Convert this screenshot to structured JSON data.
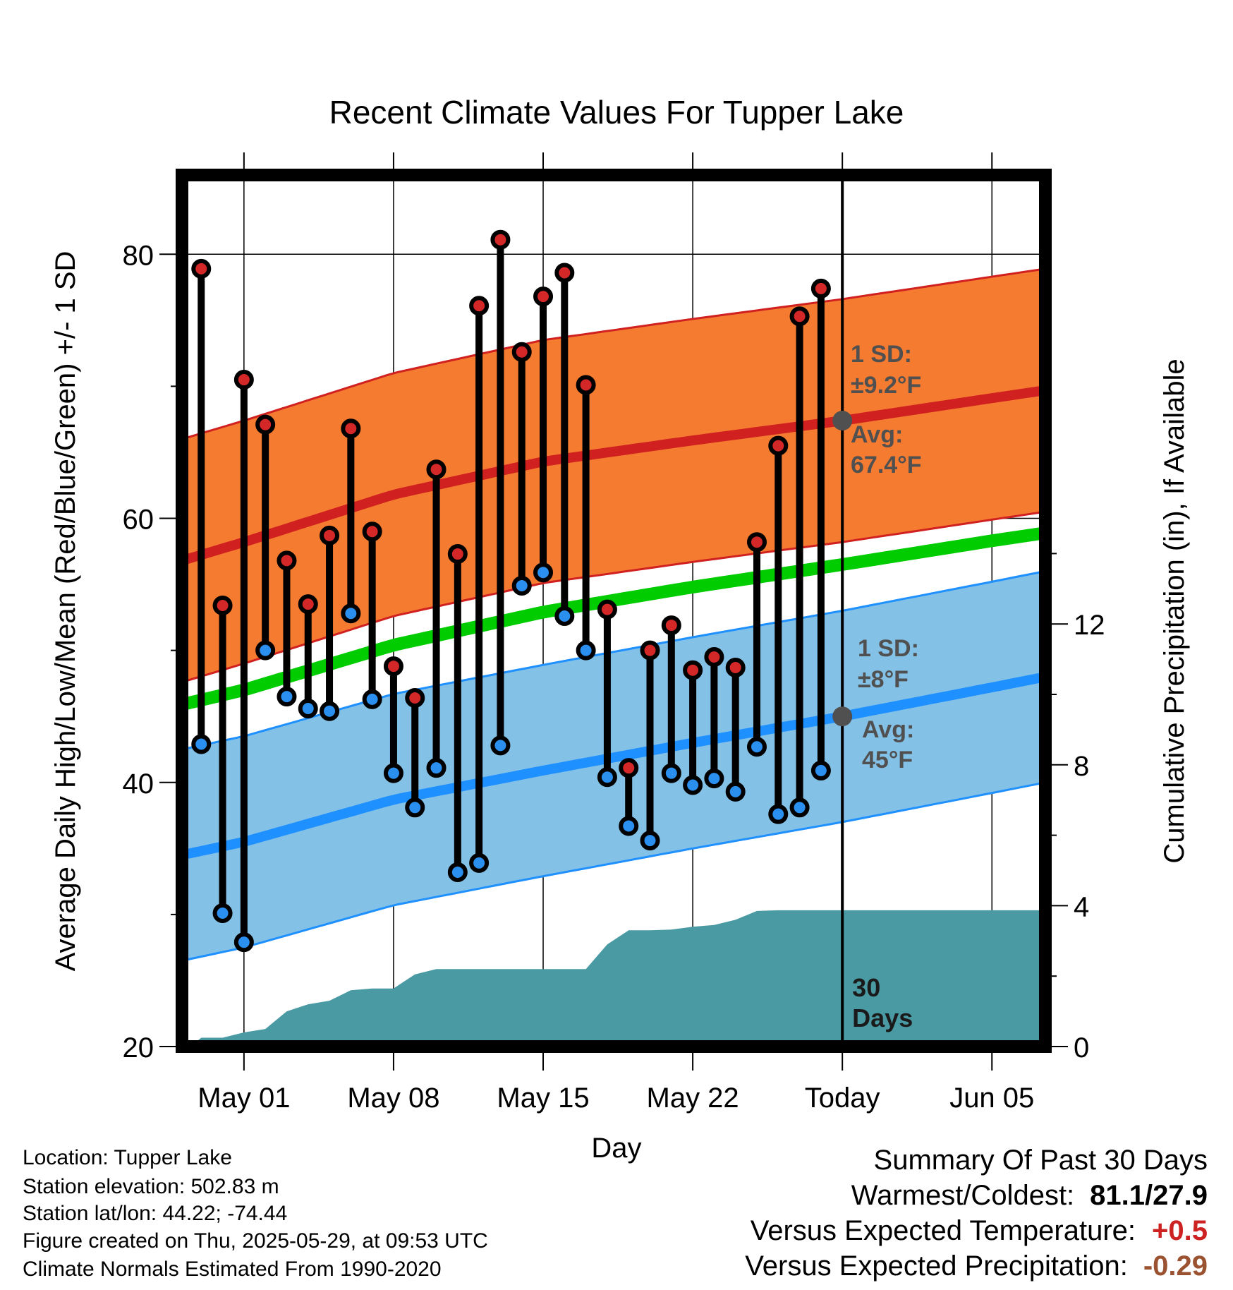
{
  "chart_data": {
    "type": "line",
    "title": "Recent Climate Values For Tupper Lake",
    "xlabel": "Day",
    "ylabel": "Average Daily High/Low/Mean (Red/Blue/Green) +/- 1 SD",
    "y2label": "Cumulative Precipitation (in), If Available",
    "ylim": [
      20,
      86
    ],
    "y2lim": [
      0,
      24.75
    ],
    "yticks": [
      20,
      40,
      60,
      80
    ],
    "y2ticks": [
      0,
      4,
      8,
      12
    ],
    "xlim": [
      -2.9,
      37.5
    ],
    "xticks": [
      {
        "x": 0,
        "label": "May 01"
      },
      {
        "x": 7,
        "label": "May 08"
      },
      {
        "x": 14,
        "label": "May 15"
      },
      {
        "x": 21,
        "label": "May 22"
      },
      {
        "x": 28,
        "label": "Today"
      },
      {
        "x": 35,
        "label": "Jun 05"
      }
    ],
    "grid": true,
    "daily_high": [
      78.9,
      53.4,
      70.5,
      67.1,
      56.8,
      53.5,
      58.7,
      66.8,
      59.0,
      48.8,
      46.4,
      63.7,
      57.3,
      76.1,
      81.1,
      72.6,
      76.8,
      78.6,
      70.1,
      53.1,
      41.1,
      50.0,
      51.9,
      48.5,
      49.5,
      48.7,
      58.2,
      65.5,
      75.3,
      77.4
    ],
    "daily_low": [
      42.9,
      30.1,
      27.9,
      50.0,
      46.5,
      45.6,
      45.4,
      52.8,
      46.3,
      40.7,
      38.1,
      41.1,
      33.2,
      33.9,
      42.8,
      54.9,
      55.9,
      52.6,
      50.0,
      40.4,
      36.7,
      35.6,
      40.7,
      39.8,
      40.3,
      39.3,
      42.7,
      37.6,
      38.1,
      40.9
    ],
    "normal_high": [
      {
        "x": -2.9,
        "y": 56.8
      },
      {
        "x": 0,
        "y": 58.2
      },
      {
        "x": 7,
        "y": 61.8
      },
      {
        "x": 14,
        "y": 64.3
      },
      {
        "x": 21,
        "y": 65.9
      },
      {
        "x": 28,
        "y": 67.4
      },
      {
        "x": 35,
        "y": 69.1
      },
      {
        "x": 37.5,
        "y": 69.7
      }
    ],
    "normal_high_sd": 9.2,
    "normal_low": [
      {
        "x": -2.9,
        "y": 34.5
      },
      {
        "x": 0,
        "y": 35.5
      },
      {
        "x": 7,
        "y": 38.7
      },
      {
        "x": 14,
        "y": 40.9
      },
      {
        "x": 21,
        "y": 43.0
      },
      {
        "x": 28,
        "y": 45.0
      },
      {
        "x": 35,
        "y": 47.2
      },
      {
        "x": 37.5,
        "y": 48.0
      }
    ],
    "normal_low_sd": 8,
    "normal_mean": [
      {
        "x": -2.9,
        "y": 45.9
      },
      {
        "x": 0,
        "y": 47.0
      },
      {
        "x": 7,
        "y": 50.4
      },
      {
        "x": 14,
        "y": 52.9
      },
      {
        "x": 21,
        "y": 54.8
      },
      {
        "x": 28,
        "y": 56.5
      },
      {
        "x": 35,
        "y": 58.3
      },
      {
        "x": 37.5,
        "y": 58.9
      }
    ],
    "precip_cumulative": [
      {
        "x": -2.5,
        "y": 0.0
      },
      {
        "x": -2,
        "y": 0.25
      },
      {
        "x": -1,
        "y": 0.25
      },
      {
        "x": 0,
        "y": 0.4
      },
      {
        "x": 1,
        "y": 0.5
      },
      {
        "x": 2,
        "y": 1.0
      },
      {
        "x": 3,
        "y": 1.2
      },
      {
        "x": 4,
        "y": 1.3
      },
      {
        "x": 5,
        "y": 1.6
      },
      {
        "x": 6,
        "y": 1.65
      },
      {
        "x": 7,
        "y": 1.65
      },
      {
        "x": 8,
        "y": 2.05
      },
      {
        "x": 9,
        "y": 2.2
      },
      {
        "x": 10,
        "y": 2.2
      },
      {
        "x": 15,
        "y": 2.2
      },
      {
        "x": 16,
        "y": 2.2
      },
      {
        "x": 17,
        "y": 2.9
      },
      {
        "x": 18,
        "y": 3.3
      },
      {
        "x": 19,
        "y": 3.3
      },
      {
        "x": 20,
        "y": 3.32
      },
      {
        "x": 21,
        "y": 3.4
      },
      {
        "x": 22,
        "y": 3.45
      },
      {
        "x": 23,
        "y": 3.6
      },
      {
        "x": 24,
        "y": 3.85
      },
      {
        "x": 25,
        "y": 3.87
      },
      {
        "x": 28,
        "y": 3.87
      },
      {
        "x": 37.5,
        "y": 3.87
      }
    ],
    "today_x": 28,
    "period_label_line1": "30",
    "period_label_line2": "Days",
    "annotations": {
      "high_sd_line1": "1 SD:",
      "high_sd_line2": "±9.2°F",
      "high_avg_line1": "Avg:",
      "high_avg_line2": "67.4°F",
      "low_sd_line1": "1 SD:",
      "low_sd_line2": "±8°F",
      "low_avg_line1": "Avg:",
      "low_avg_line2": "45°F"
    },
    "colors": {
      "high_band": "#f47b30",
      "high_line": "#d02020",
      "low_band": "#84c1e7",
      "low_line": "#1e90ff",
      "mean_line": "#00cc00",
      "precip": "#4a9aa3",
      "high_dot": "#d42828",
      "low_dot": "#2a8fee",
      "avg_dot": "#505050",
      "annotation_text": "#505050"
    }
  },
  "info": {
    "location": "Location: Tupper Lake",
    "elevation": "Station elevation: 502.83 m",
    "latlon": "Station lat/lon: 44.22; -74.44",
    "created": "Figure created on Thu, 2025-05-29, at 09:53 UTC",
    "normals": "Climate Normals Estimated From 1990-2020"
  },
  "summary": {
    "title": "Summary Of Past 30 Days",
    "warmest_label": "Warmest/Coldest:",
    "warmest_value": "81.1/27.9",
    "temp_label": "Versus Expected Temperature:",
    "temp_value": "+0.5",
    "temp_color": "#cc2222",
    "precip_label": "Versus Expected Precipitation:",
    "precip_value": "-0.29",
    "precip_color": "#9a5230"
  }
}
